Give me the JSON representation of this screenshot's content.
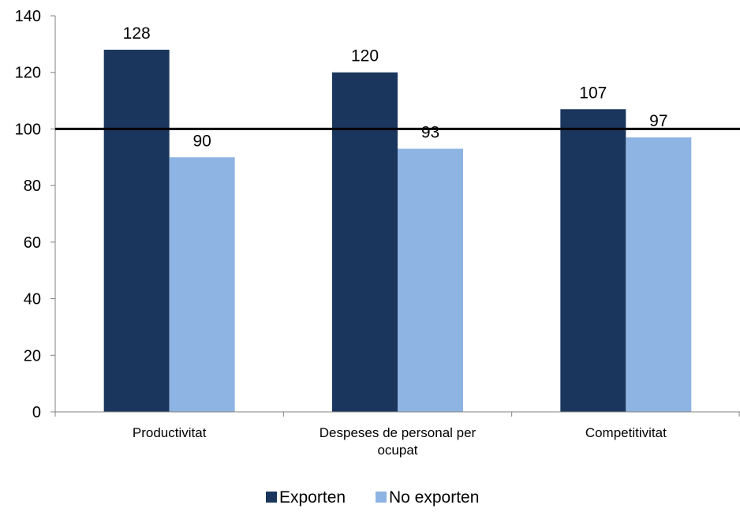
{
  "chart_data": {
    "type": "bar",
    "categories": [
      "Productivitat",
      "Despeses de personal per ocupat",
      "Competitivitat"
    ],
    "series": [
      {
        "name": "Exporten",
        "values": [
          128,
          120,
          107
        ],
        "color": "#1b365d"
      },
      {
        "name": "No exporten",
        "values": [
          90,
          93,
          97
        ],
        "color": "#8eb4e3"
      }
    ],
    "data_labels": [
      [
        "128",
        "120",
        "107"
      ],
      [
        "90",
        "93",
        "97"
      ]
    ],
    "yticks": [
      0,
      20,
      40,
      60,
      80,
      100,
      120,
      140
    ],
    "ylim": [
      0,
      140
    ],
    "reference_line": 100,
    "grid": false,
    "legend_position": "bottom",
    "title": "",
    "xlabel": "",
    "ylabel": ""
  }
}
